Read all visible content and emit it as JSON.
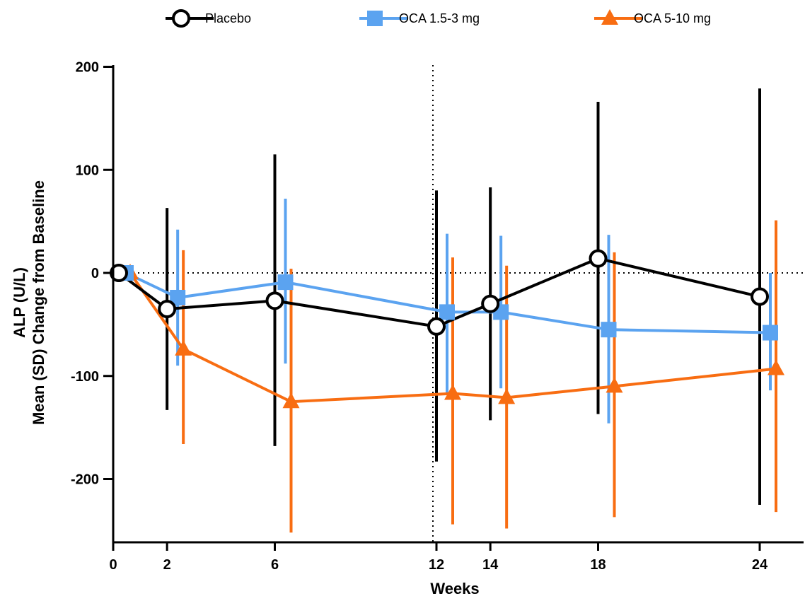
{
  "chart_data": {
    "type": "line",
    "xlabel": "Weeks",
    "ylabel_lines": [
      "ALP (U/L)",
      "Mean (SD) Change from Baseline"
    ],
    "xlim": [
      0,
      26
    ],
    "ylim": [
      -260,
      200
    ],
    "x_ticks": [
      0,
      2,
      6,
      12,
      14,
      18,
      24
    ],
    "y_ticks": [
      200,
      100,
      0,
      -100,
      -200
    ],
    "y_tick_labels": [
      "200",
      "100",
      "0",
      "-100",
      "-200"
    ],
    "reference_lines": {
      "horizontal_y": 0,
      "vertical_x": 12,
      "style": "dotted"
    },
    "legend_position": "top",
    "series": [
      {
        "name": "Placebo",
        "color": "#000000",
        "marker": "open-circle",
        "x": [
          0,
          2,
          6,
          12,
          14,
          18,
          24
        ],
        "y": [
          0,
          -35,
          -27,
          -52,
          -30,
          14,
          -23
        ],
        "err_low": [
          0,
          -133,
          -168,
          -183,
          -143,
          -137,
          -225
        ],
        "err_high": [
          0,
          63,
          115,
          80,
          83,
          166,
          179
        ]
      },
      {
        "name": "OCA 1.5-3 mg",
        "color": "#5ba3f0",
        "marker": "square",
        "x": [
          0,
          2,
          6,
          12,
          14,
          18,
          24
        ],
        "y": [
          0,
          -24,
          -9,
          -38,
          -38,
          -55,
          -58
        ],
        "err_low": [
          0,
          -90,
          -88,
          -118,
          -112,
          -146,
          -114
        ],
        "err_high": [
          0,
          42,
          72,
          38,
          36,
          37,
          0
        ]
      },
      {
        "name": "OCA 5-10 mg",
        "color": "#f86d12",
        "marker": "triangle",
        "x": [
          0,
          2,
          6,
          12,
          14,
          18,
          24
        ],
        "y": [
          0,
          -74,
          -125,
          -117,
          -121,
          -110,
          -93
        ],
        "err_low": [
          0,
          -166,
          -252,
          -244,
          -248,
          -237,
          -232
        ],
        "err_high": [
          0,
          22,
          4,
          15,
          7,
          20,
          51
        ]
      }
    ]
  }
}
